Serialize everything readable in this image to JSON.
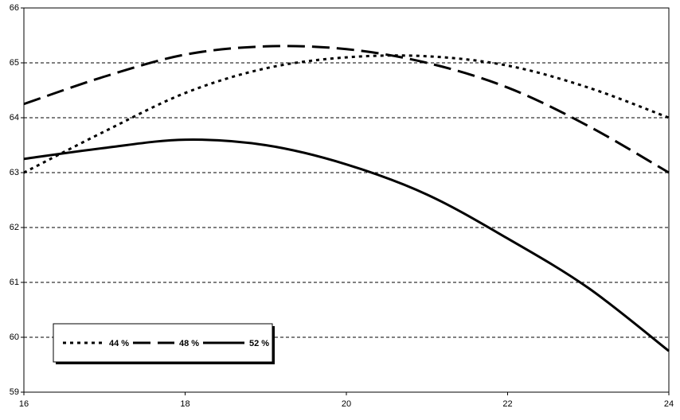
{
  "chart_data": {
    "type": "line",
    "x": [
      16,
      17,
      18,
      19,
      20,
      21,
      22,
      23,
      24
    ],
    "series": [
      {
        "name": "44 %",
        "color": "#000000",
        "dash": "dotted",
        "values": [
          63.0,
          63.75,
          64.45,
          64.9,
          65.1,
          65.12,
          64.95,
          64.55,
          64.0
        ]
      },
      {
        "name": "48 %",
        "color": "#000000",
        "dash": "dashed",
        "values": [
          64.25,
          64.75,
          65.15,
          65.3,
          65.25,
          65.0,
          64.55,
          63.85,
          63.0
        ]
      },
      {
        "name": "52 %",
        "color": "#000000",
        "dash": "solid",
        "values": [
          63.25,
          63.45,
          63.6,
          63.5,
          63.15,
          62.6,
          61.8,
          60.9,
          59.75
        ]
      }
    ],
    "xlim": [
      16,
      24
    ],
    "xticks": [
      16,
      18,
      20,
      22,
      24
    ],
    "ylim": [
      59,
      66
    ],
    "yticks": [
      59,
      60,
      61,
      62,
      63,
      64,
      65,
      66
    ],
    "grid": true,
    "legend": "lower left"
  }
}
